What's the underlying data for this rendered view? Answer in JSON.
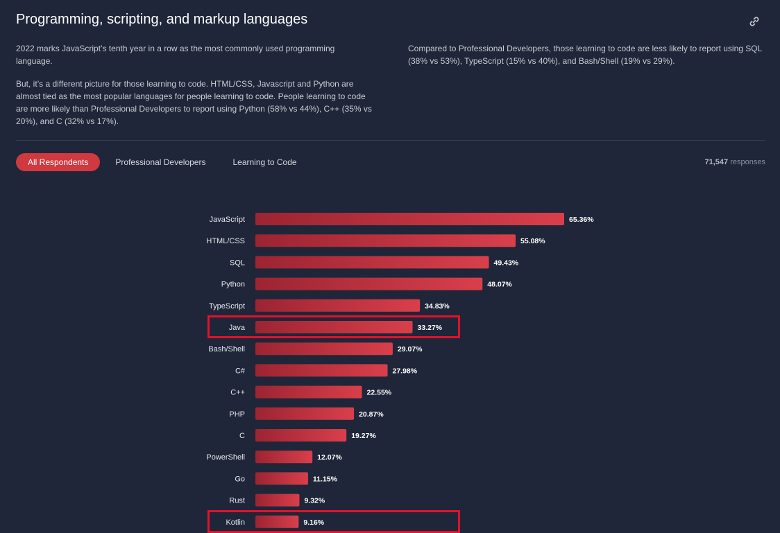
{
  "header": {
    "title": "Programming, scripting, and markup languages"
  },
  "intro": {
    "left_p1": "2022 marks JavaScript’s tenth year in a row as the most commonly used programming language.",
    "left_p2": "But, it’s a different picture for those learning to code. HTML/CSS, Javascript and Python are almost tied as the most popular languages for people learning to code. People learning to code are more likely than Professional Developers to report using Python (58% vs 44%), C++ (35% vs 20%), and C (32% vs 17%).",
    "right_p1": "Compared to Professional Developers, those learning to code are less likely to report using SQL (38% vs 53%), TypeScript (15% vs 40%), and Bash/Shell (19% vs 29%)."
  },
  "tabs": [
    {
      "label": "All Respondents",
      "active": true
    },
    {
      "label": "Professional Developers",
      "active": false
    },
    {
      "label": "Learning to Code",
      "active": false
    }
  ],
  "responses": {
    "count": "71,547",
    "label": "responses"
  },
  "colors": {
    "bar_start": "#9c2432",
    "bar_end": "#d93f4b",
    "highlight": "#e3112a",
    "accent": "#d0393f"
  },
  "chart_data": {
    "type": "bar",
    "orientation": "horizontal",
    "title": "",
    "xlabel": "",
    "ylabel": "",
    "xlim": [
      0,
      100
    ],
    "categories": [
      "JavaScript",
      "HTML/CSS",
      "SQL",
      "Python",
      "TypeScript",
      "Java",
      "Bash/Shell",
      "C#",
      "C++",
      "PHP",
      "C",
      "PowerShell",
      "Go",
      "Rust",
      "Kotlin"
    ],
    "values": [
      65.36,
      55.08,
      49.43,
      48.07,
      34.83,
      33.27,
      29.07,
      27.98,
      22.55,
      20.87,
      19.27,
      12.07,
      11.15,
      9.32,
      9.16
    ],
    "value_labels": [
      "65.36%",
      "55.08%",
      "49.43%",
      "48.07%",
      "34.83%",
      "33.27%",
      "29.07%",
      "27.98%",
      "22.55%",
      "20.87%",
      "19.27%",
      "12.07%",
      "11.15%",
      "9.32%",
      "9.16%"
    ],
    "highlighted": [
      "Java",
      "Kotlin"
    ]
  }
}
